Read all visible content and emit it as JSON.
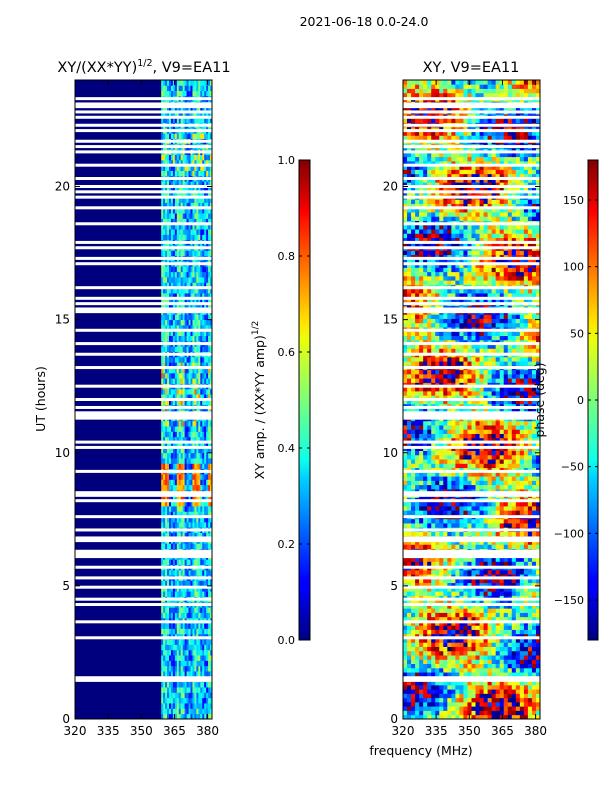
{
  "figure": {
    "suptitle": "2021-06-18 0.0-24.0",
    "shared_xlabel": "frequency (MHz)"
  },
  "colors": {
    "missing_rows": "#ffffff",
    "axis": "#000000",
    "low_background": "#00007f"
  },
  "chart_data": [
    {
      "type": "heatmap",
      "title_main": "XY/(XX*YY)",
      "title_exponent": "1/2",
      "title_suffix": ", V9=EA11",
      "ylabel": "UT (hours)",
      "xlim": [
        320,
        382
      ],
      "ylim": [
        0,
        24
      ],
      "xticks": [
        "320",
        "335",
        "350",
        "365",
        "380"
      ],
      "yticks": [
        "0",
        "5",
        "10",
        "15",
        "20"
      ],
      "colormap": "jet",
      "colorbar": {
        "label_main": "XY amp. / (XX*YY amp)",
        "label_exponent": "1/2",
        "range": [
          0.0,
          1.0
        ],
        "ticks": [
          "0.0",
          "0.2",
          "0.4",
          "0.6",
          "0.8",
          "1.0"
        ]
      },
      "low_region_mhz": [
        320,
        359
      ],
      "active_region_mhz": [
        359,
        382
      ],
      "peak_block_hours": [
        8.0,
        9.6
      ],
      "peak_value": 0.85,
      "background_value": 0.02
    },
    {
      "type": "heatmap",
      "title": "XY, V9=EA11",
      "xlim": [
        320,
        382
      ],
      "ylim": [
        0,
        24
      ],
      "xticks": [
        "320",
        "335",
        "350",
        "365",
        "380"
      ],
      "yticks": [
        "0",
        "5",
        "10",
        "15",
        "20"
      ],
      "colormap": "jet",
      "colorbar": {
        "label": "phase (deg)",
        "range": [
          -180,
          180
        ],
        "ticks": [
          "150",
          "100",
          "50",
          "0",
          "−50",
          "−100",
          "−150"
        ]
      }
    }
  ],
  "blank_row_hours": [
    1.45,
    1.55,
    3.05,
    3.65,
    4.3,
    4.5,
    4.95,
    5.3,
    5.7,
    6.1,
    6.2,
    6.3,
    6.7,
    6.8,
    7.1,
    7.6,
    8.2,
    8.4,
    8.5,
    9.3,
    10.2,
    10.4,
    11.3,
    11.4,
    11.5,
    11.7,
    12.0,
    12.5,
    13.2,
    13.7,
    14.1,
    14.6,
    15.3,
    15.4,
    15.6,
    15.8,
    16.2,
    17.1,
    17.3,
    17.7,
    17.9,
    18.6,
    19.2,
    19.6,
    19.8,
    20.0,
    20.3,
    20.8,
    21.3,
    21.5,
    21.7,
    22.1,
    22.3,
    22.6,
    22.8,
    23.0,
    23.1,
    23.3
  ]
}
